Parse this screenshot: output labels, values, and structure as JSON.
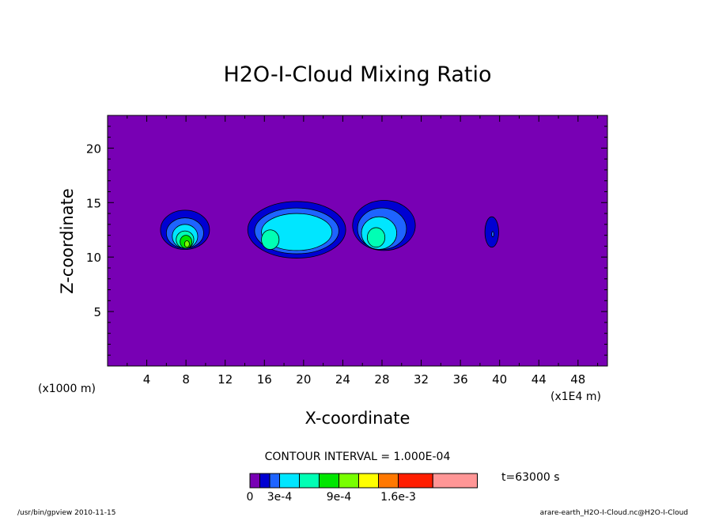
{
  "chart_data": {
    "type": "contour",
    "title": "H2O-I-Cloud Mixing Ratio",
    "xlabel": "X-coordinate",
    "ylabel": "Z-coordinate",
    "x_unit_left": "(x1000 m)",
    "x_unit_right": "(x1E4 m)",
    "xlim": [
      0,
      51
    ],
    "ylim": [
      0,
      23
    ],
    "x_ticks": [
      4,
      8,
      12,
      16,
      20,
      24,
      28,
      32,
      36,
      40,
      44,
      48
    ],
    "y_ticks": [
      5,
      10,
      15,
      20
    ],
    "background_color": "#7800b4",
    "contour_interval_label": "CONTOUR INTERVAL = 1.000E-04",
    "time_label": "t=63000 s",
    "colorbar": {
      "colors": [
        "#7800b4",
        "#0000d2",
        "#1e64ff",
        "#00e6ff",
        "#00ffb4",
        "#00e600",
        "#78ff00",
        "#ffff00",
        "#ff7800",
        "#ff1e00",
        "#ff9696"
      ],
      "labels": [
        "0",
        "3e-4",
        "9e-4",
        "1.6e-3"
      ],
      "label_positions": [
        0,
        3,
        6,
        9
      ]
    },
    "cells": [
      {
        "levels": [
          {
            "cx": 7.9,
            "cy": 12.5,
            "rx": 2.5,
            "ry": 1.8,
            "color": "#0000d2"
          },
          {
            "cx": 7.9,
            "cy": 12.2,
            "rx": 1.9,
            "ry": 1.4,
            "color": "#1e64ff"
          },
          {
            "cx": 7.9,
            "cy": 11.9,
            "rx": 1.3,
            "ry": 1.1,
            "color": "#00e6ff"
          },
          {
            "cx": 7.9,
            "cy": 11.6,
            "rx": 0.9,
            "ry": 0.8,
            "color": "#00ffb4"
          },
          {
            "cx": 8.0,
            "cy": 11.4,
            "rx": 0.6,
            "ry": 0.6,
            "color": "#00e600"
          },
          {
            "cx": 8.1,
            "cy": 11.2,
            "rx": 0.25,
            "ry": 0.3,
            "color": "#78ff00"
          }
        ]
      },
      {
        "levels": [
          {
            "cx": 19.3,
            "cy": 12.5,
            "rx": 5.0,
            "ry": 2.6,
            "color": "#0000d2"
          },
          {
            "cx": 19.3,
            "cy": 12.4,
            "rx": 4.3,
            "ry": 2.1,
            "color": "#1e64ff"
          },
          {
            "cx": 19.3,
            "cy": 12.3,
            "rx": 3.6,
            "ry": 1.7,
            "color": "#00e6ff"
          },
          {
            "cx": 16.6,
            "cy": 11.6,
            "rx": 0.9,
            "ry": 0.9,
            "color": "#00ffb4"
          }
        ]
      },
      {
        "levels": [
          {
            "cx": 28.2,
            "cy": 12.9,
            "rx": 3.2,
            "ry": 2.3,
            "color": "#0000d2"
          },
          {
            "cx": 28.0,
            "cy": 12.6,
            "rx": 2.5,
            "ry": 1.9,
            "color": "#1e64ff"
          },
          {
            "cx": 27.7,
            "cy": 12.2,
            "rx": 1.8,
            "ry": 1.5,
            "color": "#00e6ff"
          },
          {
            "cx": 27.4,
            "cy": 11.8,
            "rx": 0.9,
            "ry": 0.9,
            "color": "#00ffb4"
          }
        ]
      },
      {
        "levels": [
          {
            "cx": 39.2,
            "cy": 12.3,
            "rx": 0.7,
            "ry": 1.4,
            "color": "#0000d2"
          },
          {
            "cx": 39.3,
            "cy": 12.1,
            "rx": 0.12,
            "ry": 0.25,
            "color": "#1e64ff"
          }
        ]
      }
    ]
  },
  "footer": {
    "left": "/usr/bin/gpview   2010-11-15",
    "right": "arare-earth_H2O-I-Cloud.nc@H2O-I-Cloud"
  }
}
